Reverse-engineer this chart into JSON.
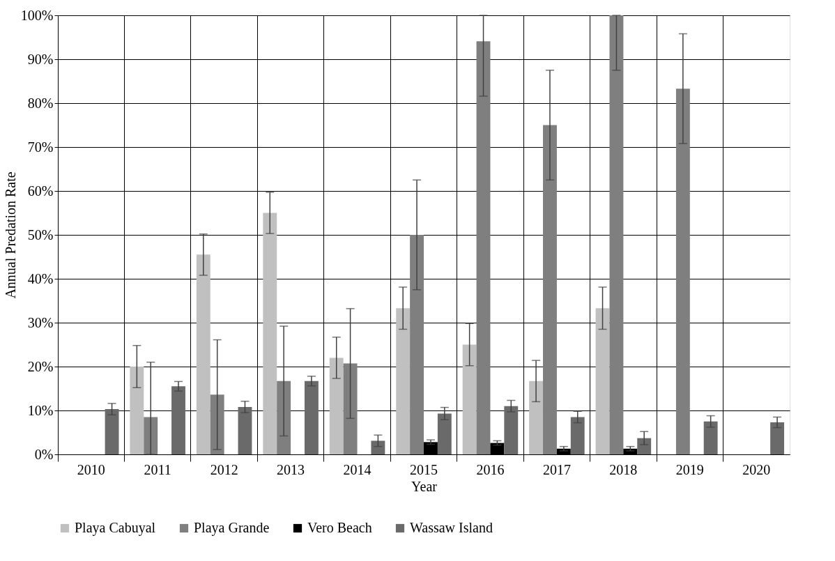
{
  "chart_data": {
    "type": "bar",
    "xlabel": "Year",
    "ylabel": "Annual Predation Rate",
    "categories": [
      "2010",
      "2011",
      "2012",
      "2013",
      "2014",
      "2015",
      "2016",
      "2017",
      "2018",
      "2019",
      "2020"
    ],
    "series": [
      {
        "name": "Playa Cabuyal",
        "color": "#c0c0c0",
        "values": [
          null,
          20,
          45.5,
          55,
          22,
          33.3,
          25,
          16.7,
          33.3,
          null,
          null
        ],
        "errors": [
          null,
          4.8,
          4.7,
          4.7,
          4.7,
          4.8,
          4.8,
          4.7,
          4.8,
          null,
          null
        ]
      },
      {
        "name": "Playa Grande",
        "color": "#7f7f7f",
        "values": [
          null,
          8.5,
          13.6,
          16.7,
          20.7,
          50,
          94.1,
          75,
          100,
          83.3,
          null
        ],
        "errors": [
          null,
          [
            0,
            21
          ],
          12.5,
          12.5,
          12.5,
          12.5,
          [
            81.6,
            100
          ],
          12.5,
          [
            87.5,
            100
          ],
          12.5,
          null
        ]
      },
      {
        "name": "Vero Beach",
        "color": "#000000",
        "values": [
          null,
          null,
          null,
          null,
          null,
          2.8,
          2.6,
          1.3,
          1.3,
          null,
          null
        ],
        "errors": [
          null,
          null,
          null,
          null,
          null,
          0.5,
          0.5,
          0.5,
          0.5,
          null,
          null
        ]
      },
      {
        "name": "Wassaw Island",
        "color": "#6a6a6a",
        "values": [
          10.3,
          15.5,
          10.8,
          16.7,
          3.1,
          9.3,
          11,
          8.5,
          3.7,
          7.5,
          7.3
        ],
        "errors": [
          1.3,
          1.1,
          1.3,
          1.1,
          1.3,
          1.4,
          1.3,
          1.3,
          1.5,
          1.3,
          1.2
        ]
      }
    ],
    "ylim": [
      0,
      100
    ],
    "yticks": [
      {
        "value": 0,
        "label": "0%"
      },
      {
        "value": 10,
        "label": "10%"
      },
      {
        "value": 20,
        "label": "20%"
      },
      {
        "value": 30,
        "label": "30%"
      },
      {
        "value": 40,
        "label": "40%"
      },
      {
        "value": 50,
        "label": "50%"
      },
      {
        "value": 60,
        "label": "60%"
      },
      {
        "value": 70,
        "label": "70%"
      },
      {
        "value": 80,
        "label": "80%"
      },
      {
        "value": 90,
        "label": "90%"
      },
      {
        "value": 100,
        "label": "100%"
      }
    ],
    "grid": true,
    "legend": "bottom"
  }
}
